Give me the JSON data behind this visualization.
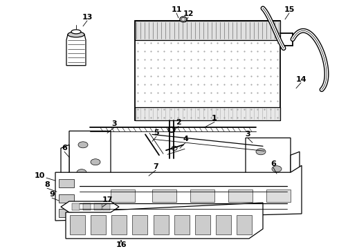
{
  "background_color": "#ffffff",
  "line_color": "#000000",
  "fig_width": 4.9,
  "fig_height": 3.6,
  "dpi": 100,
  "font_size": 8,
  "font_weight": "bold"
}
